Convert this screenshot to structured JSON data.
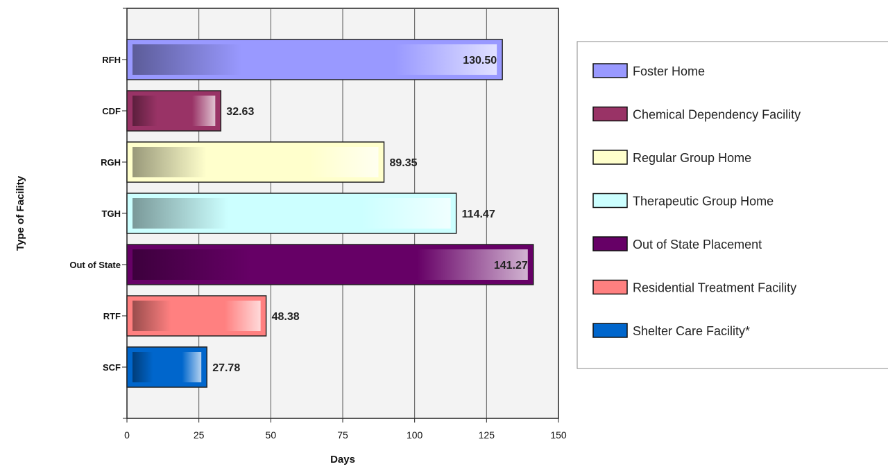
{
  "chart_data": {
    "type": "bar",
    "orientation": "horizontal",
    "xlabel": "Days",
    "ylabel": "Type of Facility",
    "xlim": [
      0,
      150
    ],
    "xticks": [
      0,
      25,
      50,
      75,
      100,
      125,
      150
    ],
    "grid": "vertical",
    "legend_position": "right",
    "categories": [
      "RFH",
      "CDF",
      "RGH",
      "TGH",
      "Out of State",
      "RTF",
      "SCF"
    ],
    "values": [
      130.5,
      32.63,
      89.35,
      114.47,
      141.27,
      48.38,
      27.78
    ],
    "value_labels": [
      "130.50",
      "32.63",
      "89.35",
      "114.47",
      "141.27",
      "48.38",
      "27.78"
    ],
    "colors": [
      "#9999ff",
      "#993366",
      "#ffffcc",
      "#ccffff",
      "#660066",
      "#ff8080",
      "#0066cc"
    ],
    "legend": [
      "Foster Home",
      "Chemical Dependency Facility",
      "Regular Group Home",
      "Therapeutic Group Home",
      "Out of State Placement",
      "Residential Treatment Facility",
      "Shelter Care Facility*"
    ]
  }
}
